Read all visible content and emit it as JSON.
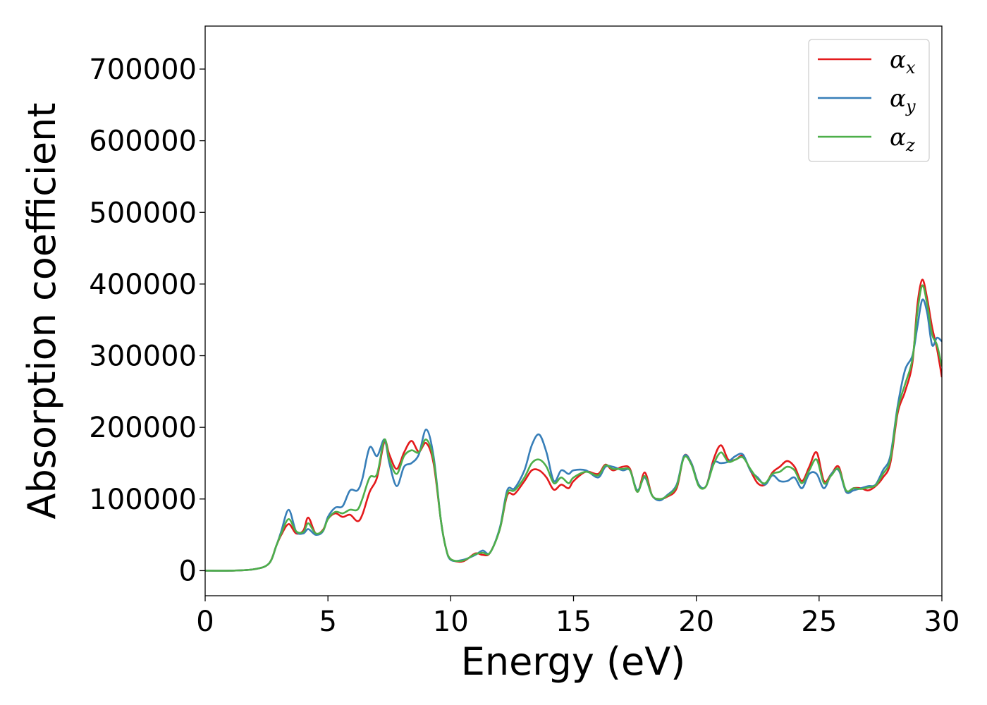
{
  "chart_data": {
    "type": "line",
    "title": "",
    "xlabel": "Energy (eV)",
    "ylabel": "Absorption coefficient",
    "xlim": [
      0,
      30
    ],
    "ylim": [
      -35000,
      760000
    ],
    "xticks": [
      0,
      5,
      10,
      15,
      20,
      25,
      30
    ],
    "yticks": [
      0,
      100000,
      200000,
      300000,
      400000,
      500000,
      600000,
      700000
    ],
    "grid": false,
    "legend_position": "top-right",
    "series": [
      {
        "name": "α_x",
        "legend_symbol": "α",
        "legend_subscript": "x",
        "color": "#e41a1c",
        "x": [
          0,
          1,
          2,
          2.6,
          2.9,
          3.1,
          3.4,
          3.7,
          4.0,
          4.2,
          4.5,
          4.8,
          5.0,
          5.3,
          5.6,
          5.9,
          6.2,
          6.4,
          6.7,
          7.0,
          7.3,
          7.5,
          7.8,
          8.1,
          8.4,
          8.7,
          9.0,
          9.3,
          9.6,
          9.8,
          10.0,
          10.5,
          11.0,
          11.3,
          11.6,
          12.0,
          12.3,
          12.6,
          13.0,
          13.3,
          13.6,
          13.9,
          14.2,
          14.5,
          14.8,
          15.0,
          15.5,
          16.0,
          16.3,
          16.6,
          17.0,
          17.3,
          17.6,
          17.9,
          18.2,
          18.5,
          18.8,
          19.2,
          19.5,
          19.8,
          20.1,
          20.4,
          20.7,
          21.0,
          21.3,
          21.6,
          21.9,
          22.2,
          22.5,
          22.8,
          23.1,
          23.4,
          23.7,
          24.0,
          24.3,
          24.6,
          24.9,
          25.2,
          25.5,
          25.8,
          26.1,
          26.4,
          26.7,
          27.0,
          27.3,
          27.6,
          27.9,
          28.2,
          28.5,
          28.8,
          29.0,
          29.2,
          29.4,
          29.6,
          29.8,
          30.0
        ],
        "y": [
          0,
          0,
          2000,
          10000,
          35000,
          50000,
          65000,
          52000,
          56000,
          74000,
          52000,
          57000,
          72000,
          80000,
          75000,
          78000,
          69000,
          78000,
          110000,
          130000,
          180000,
          162000,
          142000,
          165000,
          181000,
          166000,
          178000,
          150000,
          70000,
          32000,
          16000,
          13000,
          24000,
          22000,
          25000,
          58000,
          105000,
          107000,
          125000,
          140000,
          140000,
          130000,
          113000,
          120000,
          115000,
          125000,
          138000,
          135000,
          148000,
          140000,
          145000,
          142000,
          110000,
          137000,
          105000,
          100000,
          103000,
          115000,
          160000,
          150000,
          120000,
          118000,
          155000,
          175000,
          155000,
          155000,
          160000,
          140000,
          122000,
          120000,
          137000,
          145000,
          153000,
          145000,
          125000,
          145000,
          165000,
          125000,
          135000,
          145000,
          110000,
          115000,
          115000,
          112000,
          118000,
          130000,
          150000,
          220000,
          250000,
          290000,
          370000,
          406000,
          380000,
          340000,
          310000,
          270000
        ]
      },
      {
        "name": "α_y",
        "legend_symbol": "α",
        "legend_subscript": "y",
        "color": "#377eb8",
        "x": [
          0,
          1,
          2,
          2.6,
          2.9,
          3.1,
          3.4,
          3.7,
          4.0,
          4.2,
          4.5,
          4.8,
          5.0,
          5.3,
          5.6,
          5.9,
          6.2,
          6.4,
          6.7,
          7.0,
          7.3,
          7.5,
          7.8,
          8.1,
          8.4,
          8.7,
          9.0,
          9.3,
          9.6,
          9.8,
          10.0,
          10.5,
          11.0,
          11.3,
          11.6,
          12.0,
          12.3,
          12.6,
          13.0,
          13.3,
          13.6,
          13.9,
          14.2,
          14.5,
          14.8,
          15.0,
          15.5,
          16.0,
          16.3,
          16.6,
          17.0,
          17.3,
          17.6,
          17.9,
          18.2,
          18.5,
          18.8,
          19.2,
          19.5,
          19.8,
          20.1,
          20.4,
          20.7,
          21.0,
          21.3,
          21.6,
          21.9,
          22.2,
          22.5,
          22.8,
          23.1,
          23.4,
          23.7,
          24.0,
          24.3,
          24.6,
          24.9,
          25.2,
          25.5,
          25.8,
          26.1,
          26.4,
          26.7,
          27.0,
          27.3,
          27.6,
          27.9,
          28.2,
          28.5,
          28.8,
          29.0,
          29.2,
          29.4,
          29.6,
          29.8,
          30.0
        ],
        "y": [
          0,
          0,
          2000,
          10000,
          35000,
          55000,
          85000,
          55000,
          52000,
          58000,
          50000,
          55000,
          75000,
          88000,
          90000,
          112000,
          112000,
          128000,
          172000,
          160000,
          183000,
          150000,
          118000,
          145000,
          150000,
          162000,
          197000,
          160000,
          70000,
          32000,
          15000,
          15000,
          22000,
          28000,
          25000,
          60000,
          112000,
          115000,
          140000,
          175000,
          190000,
          165000,
          125000,
          140000,
          135000,
          140000,
          140000,
          130000,
          145000,
          145000,
          140000,
          140000,
          112000,
          130000,
          105000,
          98000,
          105000,
          120000,
          160000,
          150000,
          120000,
          118000,
          150000,
          150000,
          152000,
          160000,
          162000,
          140000,
          130000,
          120000,
          133000,
          125000,
          125000,
          130000,
          115000,
          135000,
          135000,
          115000,
          135000,
          140000,
          110000,
          112000,
          115000,
          118000,
          120000,
          140000,
          160000,
          230000,
          280000,
          300000,
          340000,
          378000,
          360000,
          315000,
          325000,
          320000
        ]
      },
      {
        "name": "α_z",
        "legend_symbol": "α",
        "legend_subscript": "z",
        "color": "#4daf4a",
        "x": [
          0,
          1,
          2,
          2.6,
          2.9,
          3.1,
          3.4,
          3.7,
          4.0,
          4.2,
          4.5,
          4.8,
          5.0,
          5.3,
          5.6,
          5.9,
          6.2,
          6.4,
          6.7,
          7.0,
          7.3,
          7.5,
          7.8,
          8.1,
          8.4,
          8.7,
          9.0,
          9.3,
          9.6,
          9.8,
          10.0,
          10.5,
          11.0,
          11.3,
          11.6,
          12.0,
          12.3,
          12.6,
          13.0,
          13.3,
          13.6,
          13.9,
          14.2,
          14.5,
          14.8,
          15.0,
          15.5,
          16.0,
          16.3,
          16.6,
          17.0,
          17.3,
          17.6,
          17.9,
          18.2,
          18.5,
          18.8,
          19.2,
          19.5,
          19.8,
          20.1,
          20.4,
          20.7,
          21.0,
          21.3,
          21.6,
          21.9,
          22.2,
          22.5,
          22.8,
          23.1,
          23.4,
          23.7,
          24.0,
          24.3,
          24.6,
          24.9,
          25.2,
          25.5,
          25.8,
          26.1,
          26.4,
          26.7,
          27.0,
          27.3,
          27.6,
          27.9,
          28.2,
          28.5,
          28.8,
          29.0,
          29.2,
          29.4,
          29.6,
          29.8,
          30.0
        ],
        "y": [
          0,
          0,
          2000,
          10000,
          35000,
          52000,
          72000,
          55000,
          54000,
          66000,
          52000,
          56000,
          72000,
          82000,
          80000,
          85000,
          85000,
          100000,
          130000,
          135000,
          183000,
          155000,
          135000,
          160000,
          168000,
          165000,
          183000,
          155000,
          70000,
          32000,
          16000,
          14000,
          23000,
          25000,
          25000,
          58000,
          108000,
          112000,
          130000,
          150000,
          155000,
          145000,
          122000,
          130000,
          122000,
          130000,
          138000,
          133000,
          147000,
          142000,
          142000,
          140000,
          110000,
          132000,
          105000,
          100000,
          104000,
          118000,
          158000,
          148000,
          118000,
          118000,
          148000,
          165000,
          152000,
          155000,
          158000,
          142000,
          128000,
          122000,
          135000,
          138000,
          145000,
          140000,
          122000,
          140000,
          155000,
          122000,
          133000,
          142000,
          112000,
          115000,
          114000,
          116000,
          119000,
          135000,
          155000,
          225000,
          260000,
          295000,
          360000,
          398000,
          372000,
          330000,
          315000,
          285000
        ]
      }
    ]
  }
}
